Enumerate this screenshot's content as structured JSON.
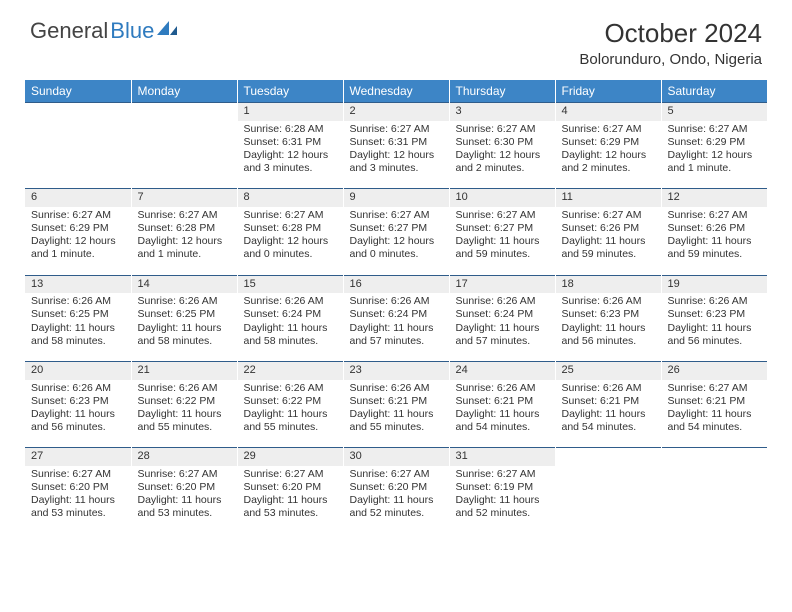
{
  "brand": {
    "text_gray": "General",
    "text_blue": "Blue"
  },
  "header": {
    "month_title": "October 2024",
    "location": "Bolorunduro, Ondo, Nigeria"
  },
  "style": {
    "header_bg": "#3d85c6",
    "header_fg": "#ffffff",
    "daynum_bg": "#eeeeee",
    "row_border": "#2f5c8a",
    "page_bg": "#ffffff",
    "text_color": "#333333",
    "logo_blue": "#2f7bbf",
    "font_family": "Arial",
    "title_fontsize": 26,
    "location_fontsize": 15,
    "dayheader_fontsize": 12,
    "cell_fontsize": 10.5,
    "calendar_width": 742,
    "col_count": 7
  },
  "days_of_week": [
    "Sunday",
    "Monday",
    "Tuesday",
    "Wednesday",
    "Thursday",
    "Friday",
    "Saturday"
  ],
  "weeks": [
    [
      null,
      null,
      {
        "n": "1",
        "sr": "Sunrise: 6:28 AM",
        "ss": "Sunset: 6:31 PM",
        "d1": "Daylight: 12 hours",
        "d2": "and 3 minutes."
      },
      {
        "n": "2",
        "sr": "Sunrise: 6:27 AM",
        "ss": "Sunset: 6:31 PM",
        "d1": "Daylight: 12 hours",
        "d2": "and 3 minutes."
      },
      {
        "n": "3",
        "sr": "Sunrise: 6:27 AM",
        "ss": "Sunset: 6:30 PM",
        "d1": "Daylight: 12 hours",
        "d2": "and 2 minutes."
      },
      {
        "n": "4",
        "sr": "Sunrise: 6:27 AM",
        "ss": "Sunset: 6:29 PM",
        "d1": "Daylight: 12 hours",
        "d2": "and 2 minutes."
      },
      {
        "n": "5",
        "sr": "Sunrise: 6:27 AM",
        "ss": "Sunset: 6:29 PM",
        "d1": "Daylight: 12 hours",
        "d2": "and 1 minute."
      }
    ],
    [
      {
        "n": "6",
        "sr": "Sunrise: 6:27 AM",
        "ss": "Sunset: 6:29 PM",
        "d1": "Daylight: 12 hours",
        "d2": "and 1 minute."
      },
      {
        "n": "7",
        "sr": "Sunrise: 6:27 AM",
        "ss": "Sunset: 6:28 PM",
        "d1": "Daylight: 12 hours",
        "d2": "and 1 minute."
      },
      {
        "n": "8",
        "sr": "Sunrise: 6:27 AM",
        "ss": "Sunset: 6:28 PM",
        "d1": "Daylight: 12 hours",
        "d2": "and 0 minutes."
      },
      {
        "n": "9",
        "sr": "Sunrise: 6:27 AM",
        "ss": "Sunset: 6:27 PM",
        "d1": "Daylight: 12 hours",
        "d2": "and 0 minutes."
      },
      {
        "n": "10",
        "sr": "Sunrise: 6:27 AM",
        "ss": "Sunset: 6:27 PM",
        "d1": "Daylight: 11 hours",
        "d2": "and 59 minutes."
      },
      {
        "n": "11",
        "sr": "Sunrise: 6:27 AM",
        "ss": "Sunset: 6:26 PM",
        "d1": "Daylight: 11 hours",
        "d2": "and 59 minutes."
      },
      {
        "n": "12",
        "sr": "Sunrise: 6:27 AM",
        "ss": "Sunset: 6:26 PM",
        "d1": "Daylight: 11 hours",
        "d2": "and 59 minutes."
      }
    ],
    [
      {
        "n": "13",
        "sr": "Sunrise: 6:26 AM",
        "ss": "Sunset: 6:25 PM",
        "d1": "Daylight: 11 hours",
        "d2": "and 58 minutes."
      },
      {
        "n": "14",
        "sr": "Sunrise: 6:26 AM",
        "ss": "Sunset: 6:25 PM",
        "d1": "Daylight: 11 hours",
        "d2": "and 58 minutes."
      },
      {
        "n": "15",
        "sr": "Sunrise: 6:26 AM",
        "ss": "Sunset: 6:24 PM",
        "d1": "Daylight: 11 hours",
        "d2": "and 58 minutes."
      },
      {
        "n": "16",
        "sr": "Sunrise: 6:26 AM",
        "ss": "Sunset: 6:24 PM",
        "d1": "Daylight: 11 hours",
        "d2": "and 57 minutes."
      },
      {
        "n": "17",
        "sr": "Sunrise: 6:26 AM",
        "ss": "Sunset: 6:24 PM",
        "d1": "Daylight: 11 hours",
        "d2": "and 57 minutes."
      },
      {
        "n": "18",
        "sr": "Sunrise: 6:26 AM",
        "ss": "Sunset: 6:23 PM",
        "d1": "Daylight: 11 hours",
        "d2": "and 56 minutes."
      },
      {
        "n": "19",
        "sr": "Sunrise: 6:26 AM",
        "ss": "Sunset: 6:23 PM",
        "d1": "Daylight: 11 hours",
        "d2": "and 56 minutes."
      }
    ],
    [
      {
        "n": "20",
        "sr": "Sunrise: 6:26 AM",
        "ss": "Sunset: 6:23 PM",
        "d1": "Daylight: 11 hours",
        "d2": "and 56 minutes."
      },
      {
        "n": "21",
        "sr": "Sunrise: 6:26 AM",
        "ss": "Sunset: 6:22 PM",
        "d1": "Daylight: 11 hours",
        "d2": "and 55 minutes."
      },
      {
        "n": "22",
        "sr": "Sunrise: 6:26 AM",
        "ss": "Sunset: 6:22 PM",
        "d1": "Daylight: 11 hours",
        "d2": "and 55 minutes."
      },
      {
        "n": "23",
        "sr": "Sunrise: 6:26 AM",
        "ss": "Sunset: 6:21 PM",
        "d1": "Daylight: 11 hours",
        "d2": "and 55 minutes."
      },
      {
        "n": "24",
        "sr": "Sunrise: 6:26 AM",
        "ss": "Sunset: 6:21 PM",
        "d1": "Daylight: 11 hours",
        "d2": "and 54 minutes."
      },
      {
        "n": "25",
        "sr": "Sunrise: 6:26 AM",
        "ss": "Sunset: 6:21 PM",
        "d1": "Daylight: 11 hours",
        "d2": "and 54 minutes."
      },
      {
        "n": "26",
        "sr": "Sunrise: 6:27 AM",
        "ss": "Sunset: 6:21 PM",
        "d1": "Daylight: 11 hours",
        "d2": "and 54 minutes."
      }
    ],
    [
      {
        "n": "27",
        "sr": "Sunrise: 6:27 AM",
        "ss": "Sunset: 6:20 PM",
        "d1": "Daylight: 11 hours",
        "d2": "and 53 minutes."
      },
      {
        "n": "28",
        "sr": "Sunrise: 6:27 AM",
        "ss": "Sunset: 6:20 PM",
        "d1": "Daylight: 11 hours",
        "d2": "and 53 minutes."
      },
      {
        "n": "29",
        "sr": "Sunrise: 6:27 AM",
        "ss": "Sunset: 6:20 PM",
        "d1": "Daylight: 11 hours",
        "d2": "and 53 minutes."
      },
      {
        "n": "30",
        "sr": "Sunrise: 6:27 AM",
        "ss": "Sunset: 6:20 PM",
        "d1": "Daylight: 11 hours",
        "d2": "and 52 minutes."
      },
      {
        "n": "31",
        "sr": "Sunrise: 6:27 AM",
        "ss": "Sunset: 6:19 PM",
        "d1": "Daylight: 11 hours",
        "d2": "and 52 minutes."
      },
      null,
      null
    ]
  ]
}
